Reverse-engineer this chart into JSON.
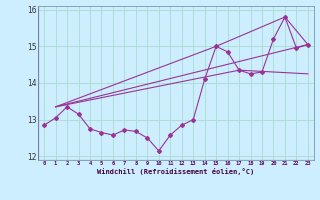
{
  "xlabel": "Windchill (Refroidissement éolien,°C)",
  "line_main": {
    "x": [
      0,
      1,
      2,
      3,
      4,
      5,
      6,
      7,
      8,
      9,
      10,
      11,
      12,
      13,
      14,
      15,
      16,
      17,
      18,
      19,
      20,
      21,
      22,
      23
    ],
    "y": [
      12.85,
      13.05,
      13.35,
      13.15,
      12.75,
      12.65,
      12.58,
      12.72,
      12.68,
      12.5,
      12.15,
      12.58,
      12.85,
      13.0,
      14.1,
      15.0,
      14.85,
      14.35,
      14.25,
      14.3,
      15.2,
      15.8,
      14.95,
      15.05
    ]
  },
  "line_a": {
    "x": [
      1,
      23
    ],
    "y": [
      13.35,
      15.05
    ]
  },
  "line_b": {
    "x": [
      1,
      15,
      21,
      23
    ],
    "y": [
      13.35,
      15.0,
      15.8,
      15.05
    ]
  },
  "line_c": {
    "x": [
      1,
      17,
      23
    ],
    "y": [
      13.35,
      14.35,
      14.25
    ]
  },
  "color": "#993399",
  "bg_color": "#cceeff",
  "grid_color": "#aaddcc",
  "ylim": [
    11.9,
    16.1
  ],
  "xlim": [
    -0.5,
    23.5
  ],
  "yticks": [
    12,
    13,
    14,
    15,
    16
  ],
  "xticks": [
    0,
    1,
    2,
    3,
    4,
    5,
    6,
    7,
    8,
    9,
    10,
    11,
    12,
    13,
    14,
    15,
    16,
    17,
    18,
    19,
    20,
    21,
    22,
    23
  ]
}
